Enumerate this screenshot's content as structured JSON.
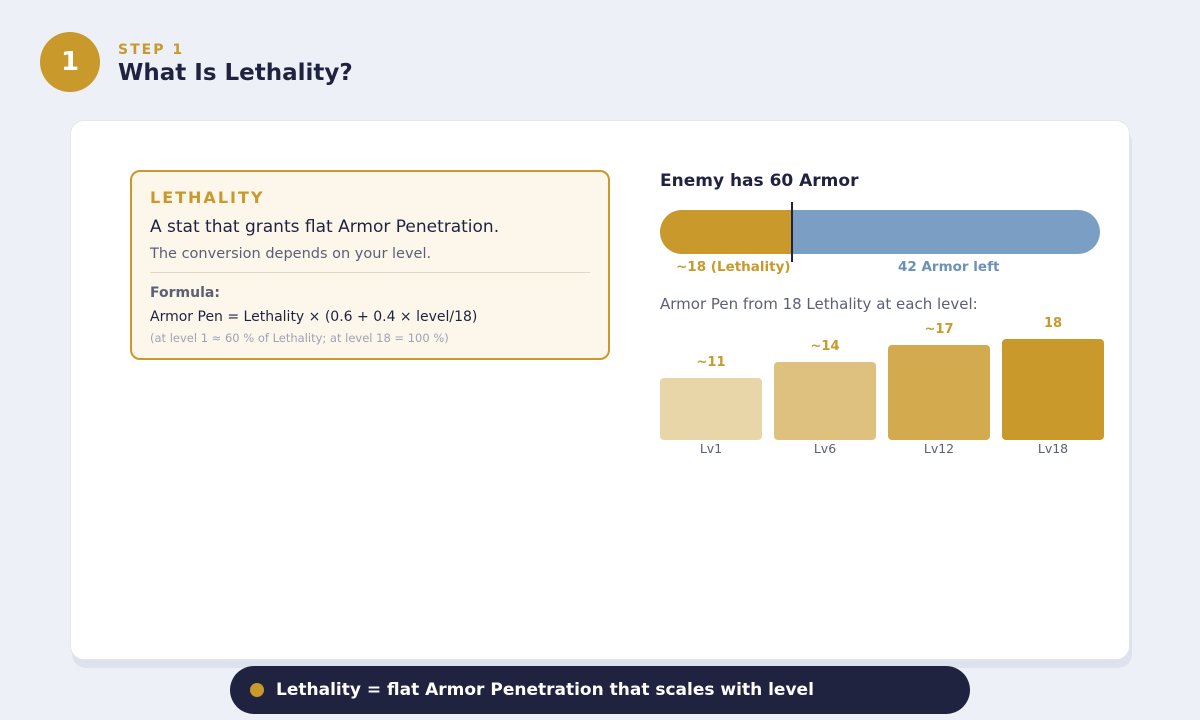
{
  "header": {
    "step_number": "1",
    "step_label": "STEP 1",
    "title": "What Is Lethality?"
  },
  "definition": {
    "title": "LETHALITY",
    "main": "A stat that grants flat Armor Penetration.",
    "sub": "The conversion depends on your level.",
    "formula_label": "Formula:",
    "formula": "Armor Pen = Lethality × (0.6 + 0.4 × level/18)",
    "formula_note": "(at level 1 ≈ 60 % of Lethality; at level 18 = 100 %)"
  },
  "armor": {
    "title": "Enemy has 60 Armor",
    "total": 60,
    "penetrated": 18,
    "penetrated_label": "~18 (Lethality)",
    "remaining_label": "42 Armor left"
  },
  "chart_data": {
    "type": "bar",
    "title": "Armor Pen from 18 Lethality at each level:",
    "categories": [
      "Lv1",
      "Lv6",
      "Lv12",
      "Lv18"
    ],
    "values": [
      11,
      14,
      17,
      18
    ],
    "value_labels": [
      "~11",
      "~14",
      "~17",
      "18"
    ],
    "colors": [
      "#e8d5a8",
      "#dfc17f",
      "#d4aa4e",
      "#c9992b"
    ]
  },
  "takeaway": {
    "text": "Lethality = flat Armor Penetration that scales with level"
  },
  "colors": {
    "accent": "#c9992b",
    "armor_blue": "#7b9fc4",
    "dark": "#1f2340"
  }
}
